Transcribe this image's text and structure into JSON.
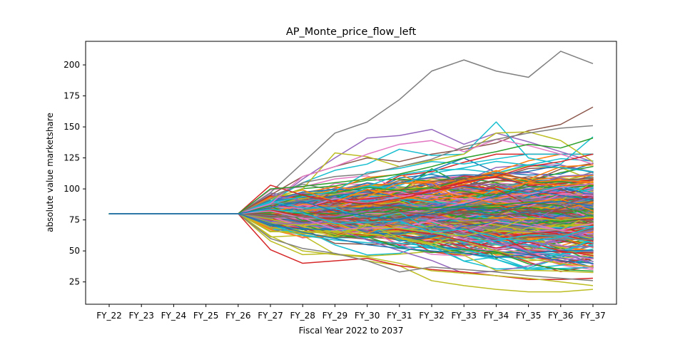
{
  "chart_data": {
    "type": "line",
    "title": "AP_Monte_price_flow_left",
    "xlabel": "Fiscal Year 2022 to 2037",
    "ylabel": "absolute value marketshare",
    "categories": [
      "FY_22",
      "FY_23",
      "FY_24",
      "FY_25",
      "FY_26",
      "FY_27",
      "FY_28",
      "FY_29",
      "FY_30",
      "FY_31",
      "FY_32",
      "FY_33",
      "FY_34",
      "FY_35",
      "FY_36",
      "FY_37"
    ],
    "yticks": [
      25,
      50,
      75,
      100,
      125,
      150,
      175,
      200
    ],
    "ylim": [
      7,
      219
    ],
    "grid": false,
    "legend": "none",
    "baseline_value": 80,
    "simulated_path_count": 400,
    "palette": [
      "#1f77b4",
      "#ff7f0e",
      "#2ca02c",
      "#d62728",
      "#9467bd",
      "#8c564b",
      "#e377c2",
      "#7f7f7f",
      "#bcbd22",
      "#17becf"
    ],
    "series": [
      {
        "color": "#7f7f7f",
        "values": [
          80,
          80,
          80,
          80,
          80,
          97,
          121,
          145,
          154,
          172,
          195,
          204,
          195,
          190,
          211,
          201
        ]
      },
      {
        "color": "#8c564b",
        "values": [
          80,
          80,
          80,
          80,
          80,
          95,
          110,
          118,
          125,
          122,
          128,
          132,
          137,
          147,
          152,
          166
        ]
      },
      {
        "color": "#9467bd",
        "values": [
          80,
          80,
          80,
          80,
          80,
          88,
          108,
          125,
          141,
          143,
          148,
          136,
          145,
          138,
          130,
          122
        ]
      },
      {
        "color": "#17becf",
        "values": [
          80,
          80,
          80,
          80,
          80,
          90,
          105,
          115,
          120,
          132,
          127,
          128,
          154,
          125,
          120,
          142
        ]
      },
      {
        "color": "#bcbd22",
        "values": [
          80,
          80,
          80,
          80,
          80,
          92,
          100,
          129,
          126,
          118,
          123,
          128,
          145,
          146,
          139,
          122
        ]
      },
      {
        "color": "#e377c2",
        "values": [
          80,
          80,
          80,
          80,
          80,
          88,
          110,
          118,
          128,
          136,
          139,
          130,
          140,
          135,
          128,
          120
        ]
      },
      {
        "color": "#7f7f7f",
        "values": [
          80,
          80,
          80,
          80,
          80,
          92,
          105,
          110,
          112,
          118,
          124,
          134,
          140,
          145,
          149,
          151
        ]
      },
      {
        "color": "#d62728",
        "values": [
          80,
          80,
          80,
          80,
          80,
          103,
          95,
          90,
          88,
          92,
          98,
          105,
          110,
          118,
          122,
          128
        ]
      },
      {
        "color": "#2ca02c",
        "values": [
          80,
          80,
          80,
          80,
          80,
          100,
          102,
          105,
          108,
          112,
          118,
          125,
          130,
          136,
          133,
          141
        ]
      },
      {
        "color": "#bcbd22",
        "values": [
          80,
          80,
          80,
          80,
          80,
          58,
          47,
          48,
          42,
          38,
          26,
          22,
          19,
          17,
          17,
          19
        ]
      },
      {
        "color": "#d62728",
        "values": [
          80,
          80,
          80,
          80,
          80,
          51,
          40,
          42,
          44,
          38,
          35,
          33,
          30,
          27,
          27,
          28
        ]
      },
      {
        "color": "#bcbd22",
        "values": [
          80,
          80,
          80,
          80,
          80,
          62,
          50,
          47,
          45,
          40,
          34,
          32,
          30,
          28,
          25,
          22
        ]
      },
      {
        "color": "#7f7f7f",
        "values": [
          80,
          80,
          80,
          80,
          80,
          60,
          52,
          48,
          42,
          33,
          37,
          35,
          33,
          30,
          28,
          26
        ]
      },
      {
        "color": "#1f77b4",
        "values": [
          80,
          80,
          80,
          80,
          80,
          72,
          65,
          60,
          55,
          52,
          50,
          48,
          45,
          47,
          42,
          40
        ]
      },
      {
        "color": "#1f77b4",
        "values": [
          80,
          80,
          80,
          80,
          80,
          85,
          90,
          82,
          78,
          75,
          80,
          85,
          82,
          88,
          90,
          86
        ]
      }
    ]
  }
}
